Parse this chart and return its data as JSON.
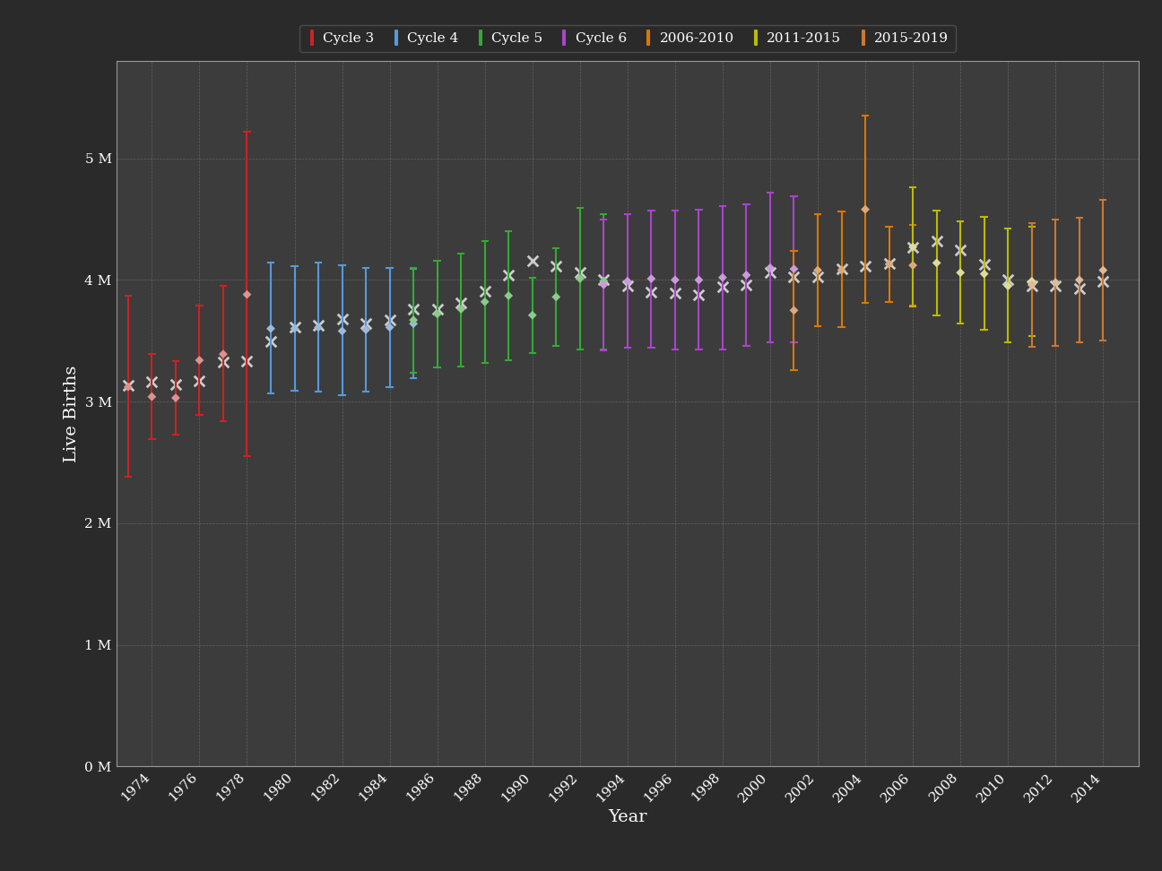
{
  "background_color": "#2a2a2a",
  "plot_bg_color": "#3c3c3c",
  "text_color": "#ffffff",
  "grid_color": "#aaaaaa",
  "axis_label_fontsize": 14,
  "tick_label_fontsize": 11,
  "legend_fontsize": 11,
  "ylim": [
    0,
    5800000
  ],
  "xlim": [
    1972.5,
    2015.5
  ],
  "ylabel": "Live Births",
  "xlabel": "Year",
  "yticks": [
    0,
    1000000,
    2000000,
    3000000,
    4000000,
    5000000
  ],
  "ytick_labels": [
    "0 M",
    "1 M",
    "2 M",
    "3 M",
    "4 M",
    "5 M"
  ],
  "xticks": [
    1974,
    1976,
    1978,
    1980,
    1982,
    1984,
    1986,
    1988,
    1990,
    1992,
    1994,
    1996,
    1998,
    2000,
    2002,
    2004,
    2006,
    2008,
    2010,
    2012,
    2014
  ],
  "cycles": {
    "Cycle 3": {
      "color": "#cc2222",
      "dot_color": "#e09090",
      "years": [
        1973,
        1974,
        1975,
        1976,
        1977,
        1978
      ],
      "estimates": [
        3120000,
        3040000,
        3030000,
        3340000,
        3390000,
        3880000
      ],
      "lower": [
        2380000,
        2690000,
        2730000,
        2890000,
        2840000,
        2550000
      ],
      "upper": [
        3870000,
        3390000,
        3330000,
        3790000,
        3950000,
        5220000
      ]
    },
    "Cycle 4": {
      "color": "#5599dd",
      "dot_color": "#99bbdd",
      "years": [
        1979,
        1980,
        1981,
        1982,
        1983,
        1984,
        1985
      ],
      "estimates": [
        3600000,
        3600000,
        3610000,
        3580000,
        3590000,
        3610000,
        3640000
      ],
      "lower": [
        3070000,
        3090000,
        3080000,
        3050000,
        3080000,
        3120000,
        3190000
      ],
      "upper": [
        4140000,
        4110000,
        4140000,
        4120000,
        4100000,
        4100000,
        4090000
      ]
    },
    "Cycle 5": {
      "color": "#33aa33",
      "dot_color": "#88cc88",
      "years": [
        1985,
        1986,
        1987,
        1988,
        1989,
        1990,
        1991,
        1992,
        1993
      ],
      "estimates": [
        3670000,
        3720000,
        3760000,
        3820000,
        3870000,
        3710000,
        3860000,
        4010000,
        3990000
      ],
      "lower": [
        3240000,
        3280000,
        3290000,
        3320000,
        3340000,
        3400000,
        3460000,
        3430000,
        3430000
      ],
      "upper": [
        4100000,
        4160000,
        4220000,
        4320000,
        4400000,
        4020000,
        4260000,
        4590000,
        4540000
      ]
    },
    "Cycle 6": {
      "color": "#aa44cc",
      "dot_color": "#cc99dd",
      "years": [
        1993,
        1994,
        1995,
        1996,
        1997,
        1998,
        1999,
        2000,
        2001
      ],
      "estimates": [
        3960000,
        3990000,
        4010000,
        4000000,
        4000000,
        4020000,
        4040000,
        4100000,
        4090000
      ],
      "lower": [
        3420000,
        3440000,
        3440000,
        3430000,
        3430000,
        3430000,
        3460000,
        3490000,
        3490000
      ],
      "upper": [
        4500000,
        4540000,
        4570000,
        4570000,
        4580000,
        4610000,
        4620000,
        4720000,
        4690000
      ]
    },
    "2006-2010": {
      "color": "#dd7700",
      "dot_color": "#ddaa77",
      "years": [
        2001,
        2002,
        2003,
        2004,
        2005,
        2006
      ],
      "estimates": [
        3750000,
        4080000,
        4080000,
        4580000,
        4130000,
        4120000
      ],
      "lower": [
        3260000,
        3620000,
        3610000,
        3810000,
        3820000,
        3790000
      ],
      "upper": [
        4240000,
        4540000,
        4560000,
        5350000,
        4440000,
        4450000
      ]
    },
    "2011-2015": {
      "color": "#bbbb00",
      "dot_color": "#dddd99",
      "years": [
        2006,
        2007,
        2008,
        2009,
        2010,
        2011
      ],
      "estimates": [
        4270000,
        4140000,
        4060000,
        4050000,
        3950000,
        3990000
      ],
      "lower": [
        3780000,
        3710000,
        3640000,
        3590000,
        3490000,
        3540000
      ],
      "upper": [
        4760000,
        4570000,
        4480000,
        4520000,
        4420000,
        4440000
      ]
    },
    "2015-2019": {
      "color": "#cc7733",
      "dot_color": "#ddbb99",
      "years": [
        2011,
        2012,
        2013,
        2014
      ],
      "estimates": [
        3960000,
        3980000,
        4000000,
        4080000
      ],
      "lower": [
        3450000,
        3460000,
        3490000,
        3500000
      ],
      "upper": [
        4470000,
        4500000,
        4510000,
        4660000
      ]
    }
  },
  "nvss": {
    "years": [
      1973,
      1974,
      1975,
      1976,
      1977,
      1978,
      1979,
      1980,
      1981,
      1982,
      1983,
      1984,
      1985,
      1986,
      1987,
      1988,
      1989,
      1990,
      1991,
      1992,
      1993,
      1994,
      1995,
      1996,
      1997,
      1998,
      1999,
      2000,
      2001,
      2002,
      2003,
      2004,
      2005,
      2006,
      2007,
      2008,
      2009,
      2010,
      2011,
      2012,
      2013,
      2014
    ],
    "values": [
      3136965,
      3159958,
      3144198,
      3167788,
      3326632,
      3333279,
      3494398,
      3612258,
      3629238,
      3680537,
      3638933,
      3669141,
      3760561,
      3756547,
      3809394,
      3909510,
      4040958,
      4158212,
      4110907,
      4065014,
      4000240,
      3952767,
      3899589,
      3891494,
      3880894,
      3941553,
      3959417,
      4058814,
      4025933,
      4021726,
      4089950,
      4112052,
      4138349,
      4265555,
      4316233,
      4247694,
      4130665,
      3999386,
      3953590,
      3952841,
      3932181,
      3988076
    ]
  },
  "legend_entries": [
    "Cycle 3",
    "Cycle 4",
    "Cycle 5",
    "Cycle 6",
    "2006-2010",
    "2011-2015",
    "2015-2019"
  ],
  "legend_colors": [
    "#cc2222",
    "#5599dd",
    "#33aa33",
    "#aa44cc",
    "#dd7700",
    "#bbbb00",
    "#cc7733"
  ]
}
